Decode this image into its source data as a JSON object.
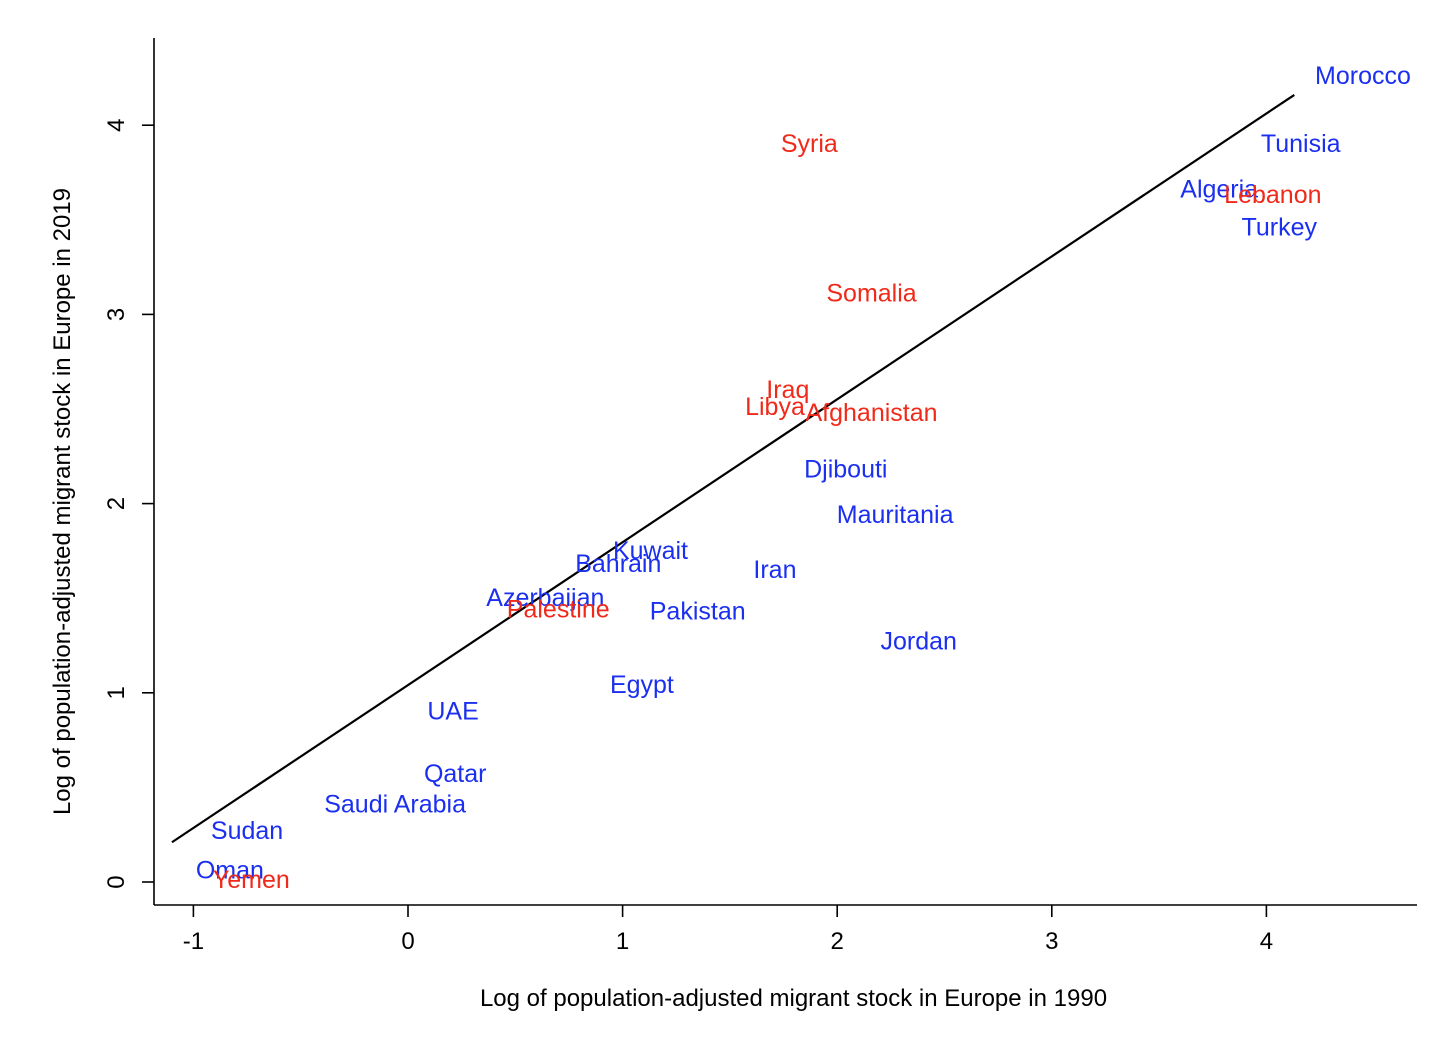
{
  "chart_data": {
    "type": "scatter",
    "xlabel": "Log of population-adjusted migrant stock in Europe in 1990",
    "ylabel": "Log of population-adjusted migrant stock in Europe in 2019",
    "xlim": [
      -1.2,
      4.7
    ],
    "ylim": [
      -0.12,
      4.45
    ],
    "xticks": [
      -1,
      0,
      1,
      2,
      3,
      4
    ],
    "yticks": [
      0,
      1,
      2,
      3,
      4
    ],
    "grid": false,
    "legend": "none",
    "colors": {
      "blue": "#1a2ff0",
      "red": "#f02a1a"
    },
    "fit_line": {
      "x": [
        -1.1,
        4.13
      ],
      "y": [
        0.21,
        4.16
      ]
    },
    "points": [
      {
        "label": "Morocco",
        "x": 4.45,
        "y": 4.26,
        "color": "blue"
      },
      {
        "label": "Tunisia",
        "x": 4.16,
        "y": 3.9,
        "color": "blue"
      },
      {
        "label": "Algeria",
        "x": 3.78,
        "y": 3.66,
        "color": "blue"
      },
      {
        "label": "Lebanon",
        "x": 4.03,
        "y": 3.63,
        "color": "red"
      },
      {
        "label": "Turkey",
        "x": 4.06,
        "y": 3.46,
        "color": "blue"
      },
      {
        "label": "Syria",
        "x": 1.87,
        "y": 3.9,
        "color": "red"
      },
      {
        "label": "Somalia",
        "x": 2.16,
        "y": 3.11,
        "color": "red"
      },
      {
        "label": "Iraq",
        "x": 1.77,
        "y": 2.6,
        "color": "red"
      },
      {
        "label": "Libya",
        "x": 1.71,
        "y": 2.51,
        "color": "red"
      },
      {
        "label": "Afghanistan",
        "x": 2.16,
        "y": 2.48,
        "color": "red"
      },
      {
        "label": "Djibouti",
        "x": 2.04,
        "y": 2.18,
        "color": "blue"
      },
      {
        "label": "Mauritania",
        "x": 2.27,
        "y": 1.94,
        "color": "blue"
      },
      {
        "label": "Kuwait",
        "x": 1.13,
        "y": 1.75,
        "color": "blue"
      },
      {
        "label": "Bahrain",
        "x": 0.98,
        "y": 1.68,
        "color": "blue"
      },
      {
        "label": "Iran",
        "x": 1.71,
        "y": 1.65,
        "color": "blue"
      },
      {
        "label": "Azerbaijan",
        "x": 0.64,
        "y": 1.5,
        "color": "blue"
      },
      {
        "label": "Palestine",
        "x": 0.7,
        "y": 1.44,
        "color": "red"
      },
      {
        "label": "Pakistan",
        "x": 1.35,
        "y": 1.43,
        "color": "blue"
      },
      {
        "label": "Jordan",
        "x": 2.38,
        "y": 1.27,
        "color": "blue"
      },
      {
        "label": "Egypt",
        "x": 1.09,
        "y": 1.04,
        "color": "blue"
      },
      {
        "label": "UAE",
        "x": 0.21,
        "y": 0.9,
        "color": "blue"
      },
      {
        "label": "Qatar",
        "x": 0.22,
        "y": 0.57,
        "color": "blue"
      },
      {
        "label": "Saudi Arabia",
        "x": -0.06,
        "y": 0.41,
        "color": "blue"
      },
      {
        "label": "Sudan",
        "x": -0.75,
        "y": 0.27,
        "color": "blue"
      },
      {
        "label": "Oman",
        "x": -0.83,
        "y": 0.06,
        "color": "blue"
      },
      {
        "label": "Yemen",
        "x": -0.73,
        "y": 0.01,
        "color": "red"
      }
    ]
  }
}
